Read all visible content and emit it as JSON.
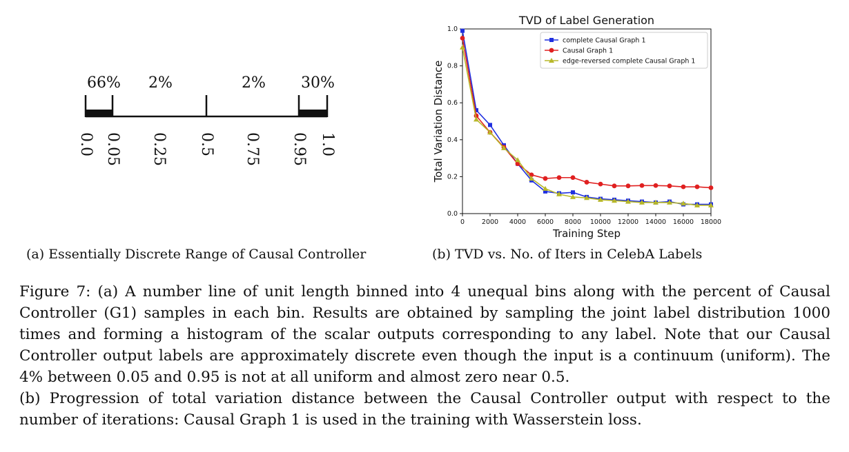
{
  "panel_a": {
    "percentages": [
      "66%",
      "2%",
      "2%",
      "30%"
    ],
    "ticks": [
      0.0,
      0.05,
      0.25,
      0.5,
      0.75,
      0.95,
      1.0
    ],
    "tick_labels": [
      "0.0",
      "0.05",
      "0.25",
      "0.5",
      "0.75",
      "0.95",
      "1.0"
    ],
    "caption": "(a) Essentially Discrete Range of Causal Controller"
  },
  "panel_b": {
    "caption": "(b) TVD vs. No. of Iters in CelebA Labels"
  },
  "chart_data": {
    "type": "line",
    "title": "TVD of Label Generation",
    "xlabel": "Training Step",
    "ylabel": "Total Variation Distance",
    "xlim": [
      0,
      18000
    ],
    "ylim": [
      0,
      1.0
    ],
    "xticks": [
      0,
      2000,
      4000,
      6000,
      8000,
      10000,
      12000,
      14000,
      16000,
      18000
    ],
    "yticks": [
      0.0,
      0.2,
      0.4,
      0.6,
      0.8,
      1.0
    ],
    "xtick_labels": [
      "0",
      "2000",
      "4000",
      "6000",
      "8000",
      "10000",
      "12000",
      "14000",
      "16000",
      "18000"
    ],
    "ytick_labels": [
      "0.0",
      "0.2",
      "0.4",
      "0.6",
      "0.8",
      "1.0"
    ],
    "legend_position": "top-right",
    "grid": false,
    "x": [
      0,
      1000,
      2000,
      3000,
      4000,
      5000,
      6000,
      7000,
      8000,
      9000,
      10000,
      11000,
      12000,
      13000,
      14000,
      15000,
      16000,
      17000,
      18000
    ],
    "series": [
      {
        "name": "complete Causal Graph 1",
        "color": "#1f2fe0",
        "marker": "square",
        "values": [
          0.99,
          0.56,
          0.48,
          0.37,
          0.27,
          0.18,
          0.12,
          0.11,
          0.115,
          0.09,
          0.08,
          0.075,
          0.07,
          0.065,
          0.06,
          0.065,
          0.05,
          0.05,
          0.05
        ]
      },
      {
        "name": "Causal Graph 1",
        "color": "#e02020",
        "marker": "circle",
        "values": [
          0.95,
          0.53,
          0.44,
          0.36,
          0.27,
          0.21,
          0.19,
          0.195,
          0.195,
          0.17,
          0.16,
          0.15,
          0.15,
          0.152,
          0.152,
          0.15,
          0.145,
          0.145,
          0.14
        ]
      },
      {
        "name": "edge-reversed complete Causal Graph 1",
        "color": "#b8b82a",
        "marker": "triangle",
        "values": [
          0.9,
          0.51,
          0.44,
          0.355,
          0.29,
          0.19,
          0.135,
          0.105,
          0.09,
          0.085,
          0.075,
          0.07,
          0.065,
          0.06,
          0.06,
          0.06,
          0.055,
          0.045,
          0.045
        ]
      }
    ]
  },
  "figure_caption": [
    "Figure 7: (a) A number line of unit length binned into 4 unequal bins along with the percent of Causal Controller (G1) samples in each bin. Results are obtained by sampling the joint label distribution 1000 times and forming a histogram of the scalar outputs corresponding to any label. Note that our Causal Controller output labels are approximately discrete even though the input is a continuum (uniform). The 4% between 0.05 and 0.95 is not at all uniform and almost zero near 0.5.",
    "(b) Progression of total variation distance between the Causal Controller output with respect to the number of iterations: Causal Graph 1 is used in the training with Wasserstein loss."
  ]
}
